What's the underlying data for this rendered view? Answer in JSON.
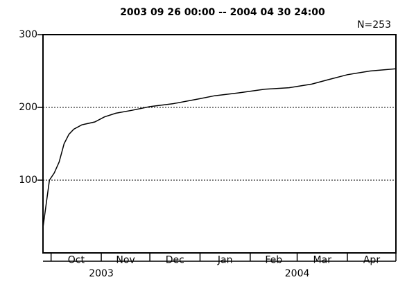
{
  "chart_data": {
    "type": "line",
    "title": "2003 09 26 00:00 -- 2004 04 30 24:00",
    "annotation": "N=253",
    "xlim": [
      "2003-09-26",
      "2004-05-01"
    ],
    "xticks": [
      "2003-10-01",
      "2003-11-01",
      "2003-12-01",
      "2004-01-01",
      "2004-02-01",
      "2004-03-01",
      "2004-04-01",
      "2004-05-01"
    ],
    "month_labels": [
      "Oct",
      "Nov",
      "Dec",
      "Jan",
      "Feb",
      "Mar",
      "Apr"
    ],
    "year_labels": [
      "2003",
      "2004"
    ],
    "ylim": [
      0,
      300
    ],
    "yticks": [
      100,
      200,
      300
    ],
    "grid": true,
    "color": "#000000",
    "x": [
      "2003-09-26",
      "2003-09-30",
      "2003-10-03",
      "2003-10-06",
      "2003-10-09",
      "2003-10-12",
      "2003-10-15",
      "2003-10-20",
      "2003-10-28",
      "2003-11-03",
      "2003-11-10",
      "2003-11-20",
      "2003-12-01",
      "2003-12-15",
      "2004-01-01",
      "2004-01-10",
      "2004-01-25",
      "2004-02-10",
      "2004-02-25",
      "2004-03-10",
      "2004-03-20",
      "2004-04-01",
      "2004-04-15",
      "2004-05-01"
    ],
    "values": [
      35,
      100,
      110,
      125,
      150,
      163,
      170,
      176,
      180,
      187,
      192,
      196,
      201,
      205,
      212,
      216,
      220,
      225,
      227,
      232,
      238,
      245,
      250,
      253
    ]
  }
}
